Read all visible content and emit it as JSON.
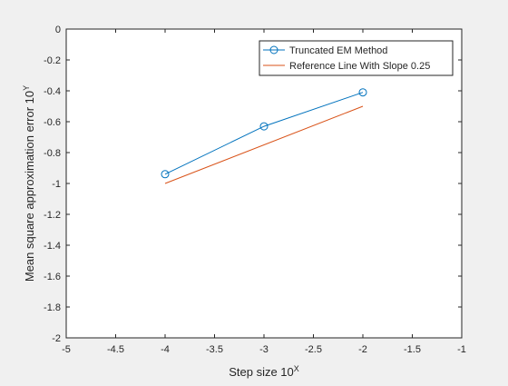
{
  "chart_data": {
    "type": "line",
    "xlabel": "Step size 10",
    "xlabel_sup": "X",
    "ylabel": "Mean square approximation error 10",
    "ylabel_sup": "Y",
    "xlim": [
      -5,
      -1
    ],
    "ylim": [
      -2,
      0
    ],
    "xticks": [
      -5,
      -4.5,
      -4,
      -3.5,
      -3,
      -2.5,
      -2,
      -1.5,
      -1
    ],
    "xtick_labels": [
      "-5",
      "-4.5",
      "-4",
      "-3.5",
      "-3",
      "-2.5",
      "-2",
      "-1.5",
      "-1"
    ],
    "yticks": [
      0,
      -0.2,
      -0.4,
      -0.6,
      -0.8,
      -1,
      -1.2,
      -1.4,
      -1.6,
      -1.8,
      -2
    ],
    "ytick_labels": [
      "0",
      "-0.2",
      "-0.4",
      "-0.6",
      "-0.8",
      "-1",
      "-1.2",
      "-1.4",
      "-1.6",
      "-1.8",
      "-2"
    ],
    "grid": false,
    "legend_position": "top-right",
    "series": [
      {
        "name": "Truncated EM Method",
        "x": [
          -4,
          -3,
          -2
        ],
        "y": [
          -0.94,
          -0.63,
          -0.41
        ],
        "color": "#0072bd",
        "marker": "circle"
      },
      {
        "name": "Reference Line With Slope 0.25",
        "x": [
          -4,
          -2
        ],
        "y": [
          -1.0,
          -0.5
        ],
        "color": "#d95319",
        "marker": "none"
      }
    ]
  }
}
